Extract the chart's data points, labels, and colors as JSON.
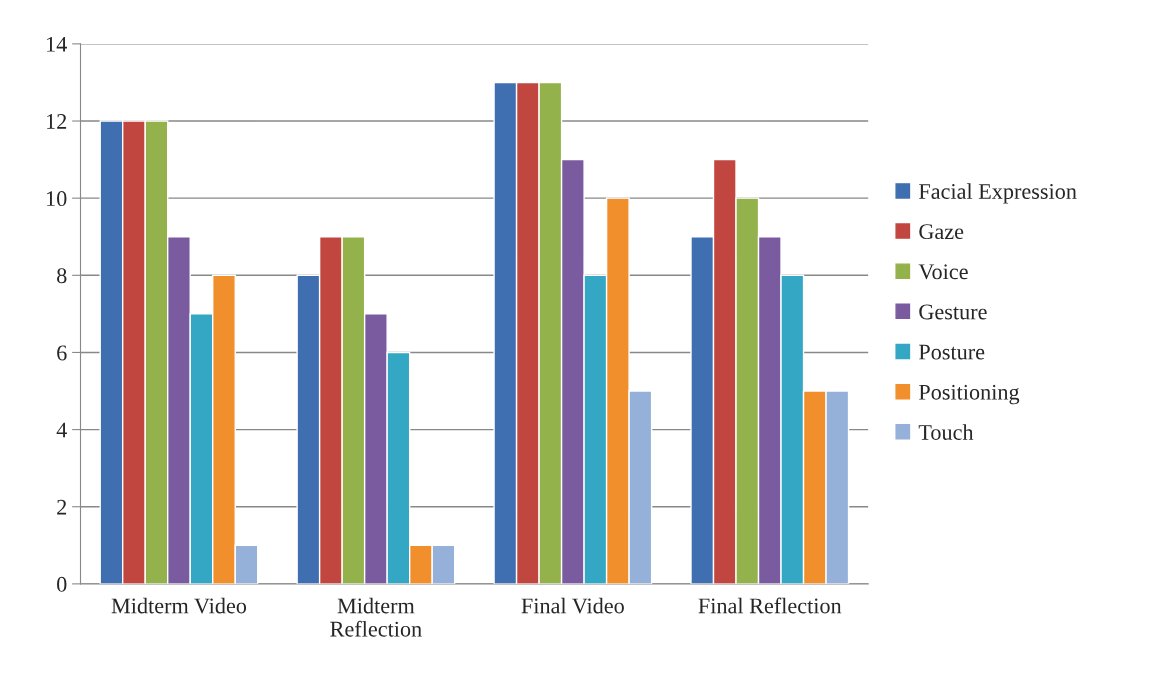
{
  "chart_data": {
    "type": "bar",
    "categories": [
      "Midterm Video",
      "Midterm\nReflection",
      "Final Video",
      "Final Reflection"
    ],
    "series": [
      {
        "name": "Facial Expression",
        "color": "#3f6fb0",
        "values": [
          12,
          8,
          13,
          9
        ]
      },
      {
        "name": "Gaze",
        "color": "#c1463f",
        "values": [
          12,
          9,
          13,
          11
        ]
      },
      {
        "name": "Voice",
        "color": "#93b24b",
        "values": [
          12,
          9,
          13,
          10
        ]
      },
      {
        "name": "Gesture",
        "color": "#7b5ba0",
        "values": [
          9,
          7,
          11,
          9
        ]
      },
      {
        "name": "Posture",
        "color": "#33a7c3",
        "values": [
          7,
          6,
          8,
          8
        ]
      },
      {
        "name": "Positioning",
        "color": "#f18f2c",
        "values": [
          8,
          1,
          10,
          5
        ]
      },
      {
        "name": "Touch",
        "color": "#95b1d9",
        "values": [
          1,
          1,
          5,
          5
        ]
      }
    ],
    "ylim": [
      0,
      14
    ],
    "yticks": [
      0,
      2,
      4,
      6,
      8,
      10,
      12,
      14
    ],
    "grid": "y",
    "legend": "right"
  }
}
